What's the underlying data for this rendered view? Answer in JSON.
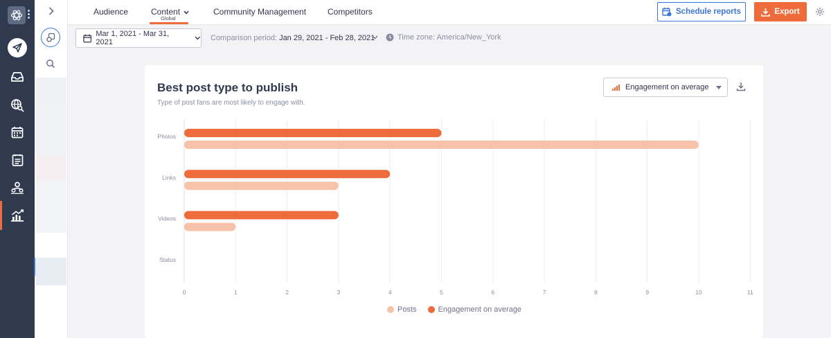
{
  "nav": {
    "tabs": [
      {
        "label": "Audience"
      },
      {
        "label": "Content",
        "sub": "Global"
      },
      {
        "label": "Community Management"
      },
      {
        "label": "Competitors"
      }
    ],
    "schedule_label": "Schedule reports",
    "export_label": "Export"
  },
  "filters": {
    "date_range": "Mar 1, 2021 - Mar 31, 2021",
    "comparison_label": "Comparison period:",
    "comparison_value": "Jan 29, 2021 - Feb 28, 2021",
    "timezone": "Time zone: America/New_York"
  },
  "card": {
    "title": "Best post type to publish",
    "subtitle": "Type of post fans are most likely to engage with.",
    "metric_select": "Engagement on average"
  },
  "colors": {
    "accent": "#ee6b3b",
    "accent_light": "#f6c3aa",
    "link_blue": "#3c74d9",
    "rail": "#2f3a4f"
  },
  "rail_icons": [
    "app-logo-icon",
    "send-icon",
    "inbox-icon",
    "globe-search-icon",
    "calendar-icon",
    "list-icon",
    "people-icon",
    "reports-icon"
  ],
  "chart_data": {
    "type": "bar",
    "orientation": "horizontal",
    "categories": [
      "Photos",
      "Links",
      "Videos",
      "Status"
    ],
    "series": [
      {
        "name": "Engagement on average",
        "values": [
          5,
          4,
          3,
          0
        ]
      },
      {
        "name": "Posts",
        "values": [
          10,
          3,
          1,
          0
        ]
      }
    ],
    "x_ticks": [
      "0",
      "1",
      "2",
      "3",
      "4",
      "5",
      "6",
      "7",
      "8",
      "9",
      "10",
      "11"
    ],
    "xlim": [
      0,
      11
    ],
    "grid": "vertical",
    "legend": [
      "Posts",
      "Engagement on average"
    ],
    "legend_placement": "bottom-center"
  }
}
